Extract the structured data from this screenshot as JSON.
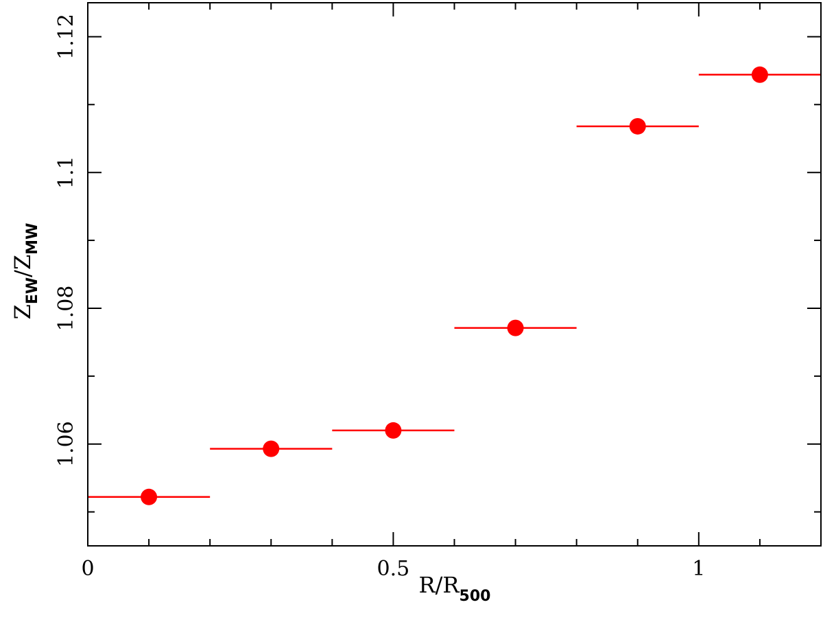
{
  "chart_data": {
    "type": "scatter",
    "title": "",
    "xlabel": {
      "main": "R/R",
      "sub": "500"
    },
    "ylabel": {
      "main1": "Z",
      "sub1": "EW",
      "sep": "/Z",
      "sub2": "MW"
    },
    "xlim": [
      0,
      1.2
    ],
    "ylim": [
      1.045,
      1.125
    ],
    "x_major_ticks": [
      0,
      0.5,
      1
    ],
    "x_tick_labels": [
      "0",
      "0.5",
      "1"
    ],
    "x_minor_step": 0.1,
    "y_major_ticks": [
      1.06,
      1.08,
      1.1,
      1.12
    ],
    "y_tick_labels": [
      "1.06",
      "1.08",
      "1.1",
      "1.12"
    ],
    "y_minor_step": 0.01,
    "grid": false,
    "series": [
      {
        "color": "#ff0000",
        "points": [
          {
            "x": 0.1,
            "y": 1.0522,
            "xerr": 0.1
          },
          {
            "x": 0.3,
            "y": 1.0593,
            "xerr": 0.1
          },
          {
            "x": 0.5,
            "y": 1.062,
            "xerr": 0.1
          },
          {
            "x": 0.7,
            "y": 1.0771,
            "xerr": 0.1
          },
          {
            "x": 0.9,
            "y": 1.1068,
            "xerr": 0.1
          },
          {
            "x": 1.1,
            "y": 1.1144,
            "xerr": 0.1
          }
        ]
      }
    ]
  }
}
